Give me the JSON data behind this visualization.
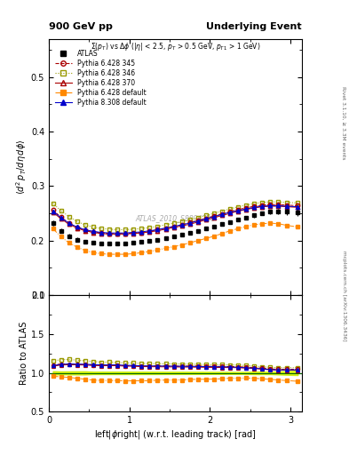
{
  "title_left": "900 GeV pp",
  "title_right": "Underlying Event",
  "subtitle": "Σ(p_T) vs Δϕ (|η| < 2.5, p_T > 0.5 GeV, p_{T1} > 1 GeV)",
  "xlabel": "left|ϕright| (w.r.t. leading track) [rad]",
  "ylabel": "⟨d² p_T/dηdϕ⟩",
  "ylabel_ratio": "Ratio to ATLAS",
  "right_label_top": "Rivet 3.1.10, ≥ 3.3M events",
  "right_label_bottom": "mcplots.cern.ch [arXiv:1306.3436]",
  "watermark": "ATLAS_2010_S8894728",
  "ylim_main": [
    0.1,
    0.57
  ],
  "ylim_ratio": [
    0.5,
    2.0
  ],
  "xlim": [
    0.0,
    3.14159
  ],
  "x_data": [
    0.05,
    0.15,
    0.25,
    0.35,
    0.45,
    0.55,
    0.65,
    0.75,
    0.85,
    0.95,
    1.05,
    1.15,
    1.25,
    1.35,
    1.45,
    1.55,
    1.65,
    1.75,
    1.85,
    1.95,
    2.05,
    2.15,
    2.25,
    2.35,
    2.45,
    2.55,
    2.65,
    2.75,
    2.85,
    2.95,
    3.09
  ],
  "atlas_y": [
    0.232,
    0.218,
    0.208,
    0.202,
    0.198,
    0.196,
    0.195,
    0.194,
    0.194,
    0.195,
    0.196,
    0.198,
    0.2,
    0.202,
    0.205,
    0.208,
    0.211,
    0.214,
    0.218,
    0.222,
    0.226,
    0.23,
    0.234,
    0.238,
    0.242,
    0.246,
    0.25,
    0.253,
    0.254,
    0.253,
    0.252
  ],
  "atlas_yerr": [
    0.005,
    0.004,
    0.004,
    0.004,
    0.004,
    0.003,
    0.003,
    0.003,
    0.003,
    0.003,
    0.003,
    0.003,
    0.003,
    0.003,
    0.003,
    0.003,
    0.003,
    0.003,
    0.003,
    0.003,
    0.003,
    0.003,
    0.003,
    0.003,
    0.003,
    0.004,
    0.004,
    0.004,
    0.005,
    0.006,
    0.007
  ],
  "py6_345_y": [
    0.256,
    0.243,
    0.232,
    0.224,
    0.219,
    0.216,
    0.214,
    0.213,
    0.213,
    0.213,
    0.214,
    0.215,
    0.217,
    0.22,
    0.223,
    0.226,
    0.229,
    0.233,
    0.237,
    0.241,
    0.245,
    0.249,
    0.253,
    0.257,
    0.26,
    0.263,
    0.265,
    0.266,
    0.266,
    0.265,
    0.264
  ],
  "py6_346_y": [
    0.268,
    0.255,
    0.244,
    0.235,
    0.229,
    0.225,
    0.222,
    0.221,
    0.22,
    0.22,
    0.221,
    0.222,
    0.224,
    0.226,
    0.229,
    0.232,
    0.235,
    0.238,
    0.242,
    0.246,
    0.25,
    0.254,
    0.258,
    0.262,
    0.265,
    0.268,
    0.27,
    0.271,
    0.271,
    0.27,
    0.269
  ],
  "py6_370_y": [
    0.252,
    0.24,
    0.23,
    0.223,
    0.218,
    0.215,
    0.213,
    0.212,
    0.212,
    0.212,
    0.213,
    0.214,
    0.216,
    0.218,
    0.221,
    0.224,
    0.227,
    0.23,
    0.234,
    0.238,
    0.242,
    0.246,
    0.25,
    0.254,
    0.257,
    0.26,
    0.262,
    0.263,
    0.263,
    0.262,
    0.261
  ],
  "py6_def_y": [
    0.222,
    0.207,
    0.196,
    0.188,
    0.182,
    0.178,
    0.176,
    0.175,
    0.175,
    0.175,
    0.176,
    0.178,
    0.18,
    0.183,
    0.186,
    0.189,
    0.192,
    0.196,
    0.2,
    0.204,
    0.208,
    0.213,
    0.218,
    0.222,
    0.226,
    0.229,
    0.231,
    0.232,
    0.231,
    0.228,
    0.225
  ],
  "py8_def_y": [
    0.254,
    0.242,
    0.232,
    0.225,
    0.22,
    0.217,
    0.215,
    0.214,
    0.214,
    0.214,
    0.215,
    0.216,
    0.218,
    0.22,
    0.223,
    0.226,
    0.229,
    0.232,
    0.236,
    0.24,
    0.244,
    0.248,
    0.252,
    0.255,
    0.258,
    0.261,
    0.263,
    0.264,
    0.264,
    0.263,
    0.262
  ],
  "color_py6_345": "#aa0000",
  "color_py6_346": "#999900",
  "color_py6_370": "#aa0000",
  "color_py6_def": "#ff8800",
  "color_py8_def": "#0000cc",
  "color_atlas": "#000000",
  "color_ref_band": "#ccee00"
}
